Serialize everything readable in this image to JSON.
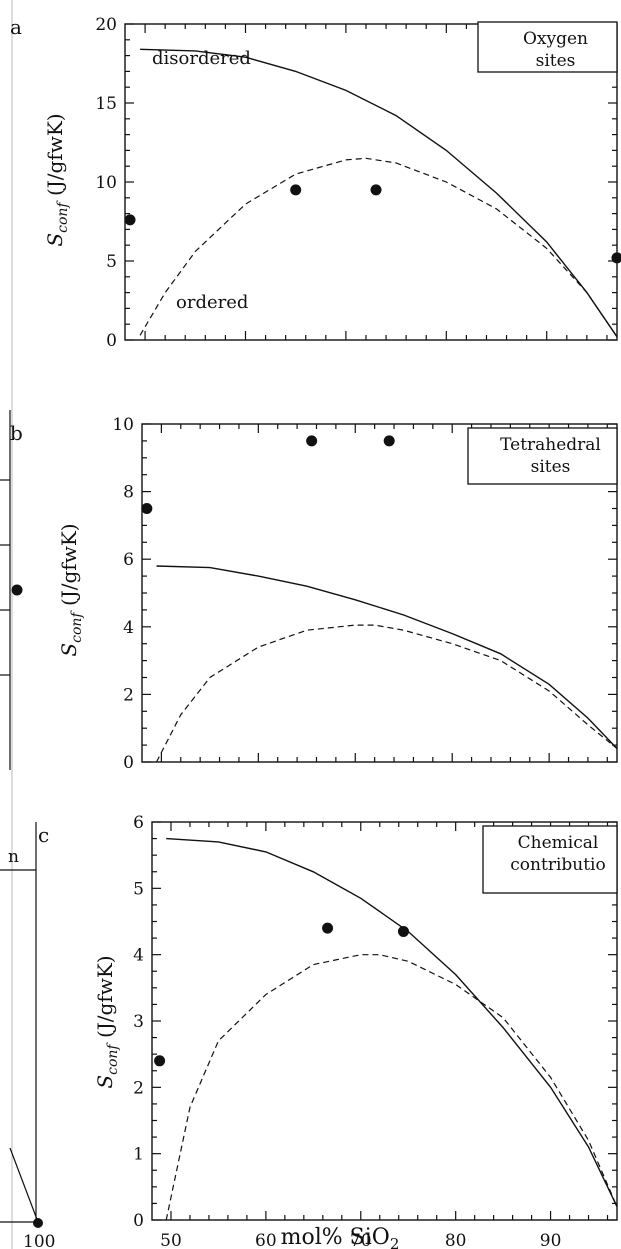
{
  "chart_data": [
    {
      "type": "line",
      "panel": "a",
      "legend": [
        "Oxygen",
        "sites"
      ],
      "ylabel": "S_conf (J/gfwK)",
      "xlabel": "",
      "xlim": [
        48,
        97
      ],
      "ylim": [
        0,
        20
      ],
      "yticks": [
        0,
        5,
        10,
        15,
        20
      ],
      "xticks": [],
      "series": [
        {
          "name": "disordered",
          "style": "solid",
          "x": [
            49.5,
            55,
            60,
            65,
            70,
            75,
            80,
            85,
            90,
            94,
            97
          ],
          "y": [
            18.4,
            18.3,
            17.9,
            17.0,
            15.8,
            14.2,
            12.0,
            9.3,
            6.2,
            3.0,
            0.2
          ]
        },
        {
          "name": "ordered",
          "style": "dashed",
          "x": [
            49.5,
            52,
            55,
            60,
            65,
            70,
            72,
            75,
            80,
            85,
            90,
            94,
            97
          ],
          "y": [
            0.3,
            3.0,
            5.6,
            8.6,
            10.5,
            11.4,
            11.5,
            11.2,
            10.0,
            8.3,
            5.8,
            3.0,
            0.2
          ]
        },
        {
          "name": "",
          "style": "points",
          "x": [
            48.5,
            65,
            73,
            97
          ],
          "y": [
            7.6,
            9.5,
            9.5,
            5.2
          ]
        }
      ],
      "annotations": [
        "disordered",
        "ordered"
      ]
    },
    {
      "type": "line",
      "panel": "b",
      "legend": [
        "Tetrahedral",
        "sites"
      ],
      "ylabel": "S_conf (J/gfwK)",
      "xlabel": "",
      "xlim": [
        48,
        97
      ],
      "ylim": [
        0,
        10
      ],
      "yticks": [
        0,
        2,
        4,
        6,
        8,
        10
      ],
      "xticks": [],
      "series": [
        {
          "name": "",
          "style": "solid",
          "x": [
            49.5,
            55,
            60,
            65,
            70,
            75,
            80,
            85,
            90,
            94,
            97
          ],
          "y": [
            5.8,
            5.75,
            5.5,
            5.2,
            4.8,
            4.35,
            3.8,
            3.2,
            2.3,
            1.3,
            0.4
          ]
        },
        {
          "name": "",
          "style": "dashed",
          "x": [
            49.5,
            52,
            55,
            60,
            65,
            70,
            72,
            75,
            80,
            85,
            90,
            94,
            97
          ],
          "y": [
            0.0,
            1.4,
            2.5,
            3.4,
            3.9,
            4.05,
            4.05,
            3.9,
            3.5,
            3.0,
            2.1,
            1.1,
            0.4
          ]
        },
        {
          "name": "",
          "style": "points",
          "x": [
            48.5,
            65.5,
            73.5
          ],
          "y": [
            7.5,
            9.5,
            9.5
          ]
        }
      ]
    },
    {
      "type": "line",
      "panel": "c",
      "legend": [
        "Chemical",
        "contributio"
      ],
      "ylabel": "S_conf (J/gfwK)",
      "xlabel": "mol% SiO2",
      "xlim": [
        48,
        97
      ],
      "ylim": [
        0,
        6
      ],
      "yticks": [
        0,
        1,
        2,
        3,
        4,
        5,
        6
      ],
      "xticks": [
        50,
        60,
        70,
        80,
        90
      ],
      "series": [
        {
          "name": "",
          "style": "solid",
          "x": [
            49.5,
            55,
            60,
            65,
            70,
            75,
            80,
            85,
            90,
            94,
            97
          ],
          "y": [
            5.75,
            5.7,
            5.55,
            5.25,
            4.85,
            4.35,
            3.7,
            2.9,
            2.0,
            1.1,
            0.2
          ]
        },
        {
          "name": "",
          "style": "dashed",
          "x": [
            49.5,
            52,
            55,
            60,
            65,
            70,
            72,
            75,
            80,
            85,
            90,
            94,
            97
          ],
          "y": [
            0.0,
            1.7,
            2.7,
            3.4,
            3.85,
            4.0,
            4.0,
            3.9,
            3.55,
            3.05,
            2.15,
            1.2,
            0.2
          ]
        },
        {
          "name": "",
          "style": "points",
          "x": [
            48.8,
            66.5,
            74.5
          ],
          "y": [
            2.4,
            4.4,
            4.35
          ]
        }
      ]
    }
  ],
  "page": {
    "fragments": {
      "left_label_n": "n",
      "left_tick_100": "100",
      "panel_a_letter": "a",
      "panel_b_letter": "b",
      "panel_c_letter": "c",
      "x_axis_label_main": "mol% SiO",
      "x_axis_label_sub": "2",
      "y_label_main": "S",
      "y_label_sub": "conf",
      "y_label_units": " (J/gfwK)"
    }
  }
}
